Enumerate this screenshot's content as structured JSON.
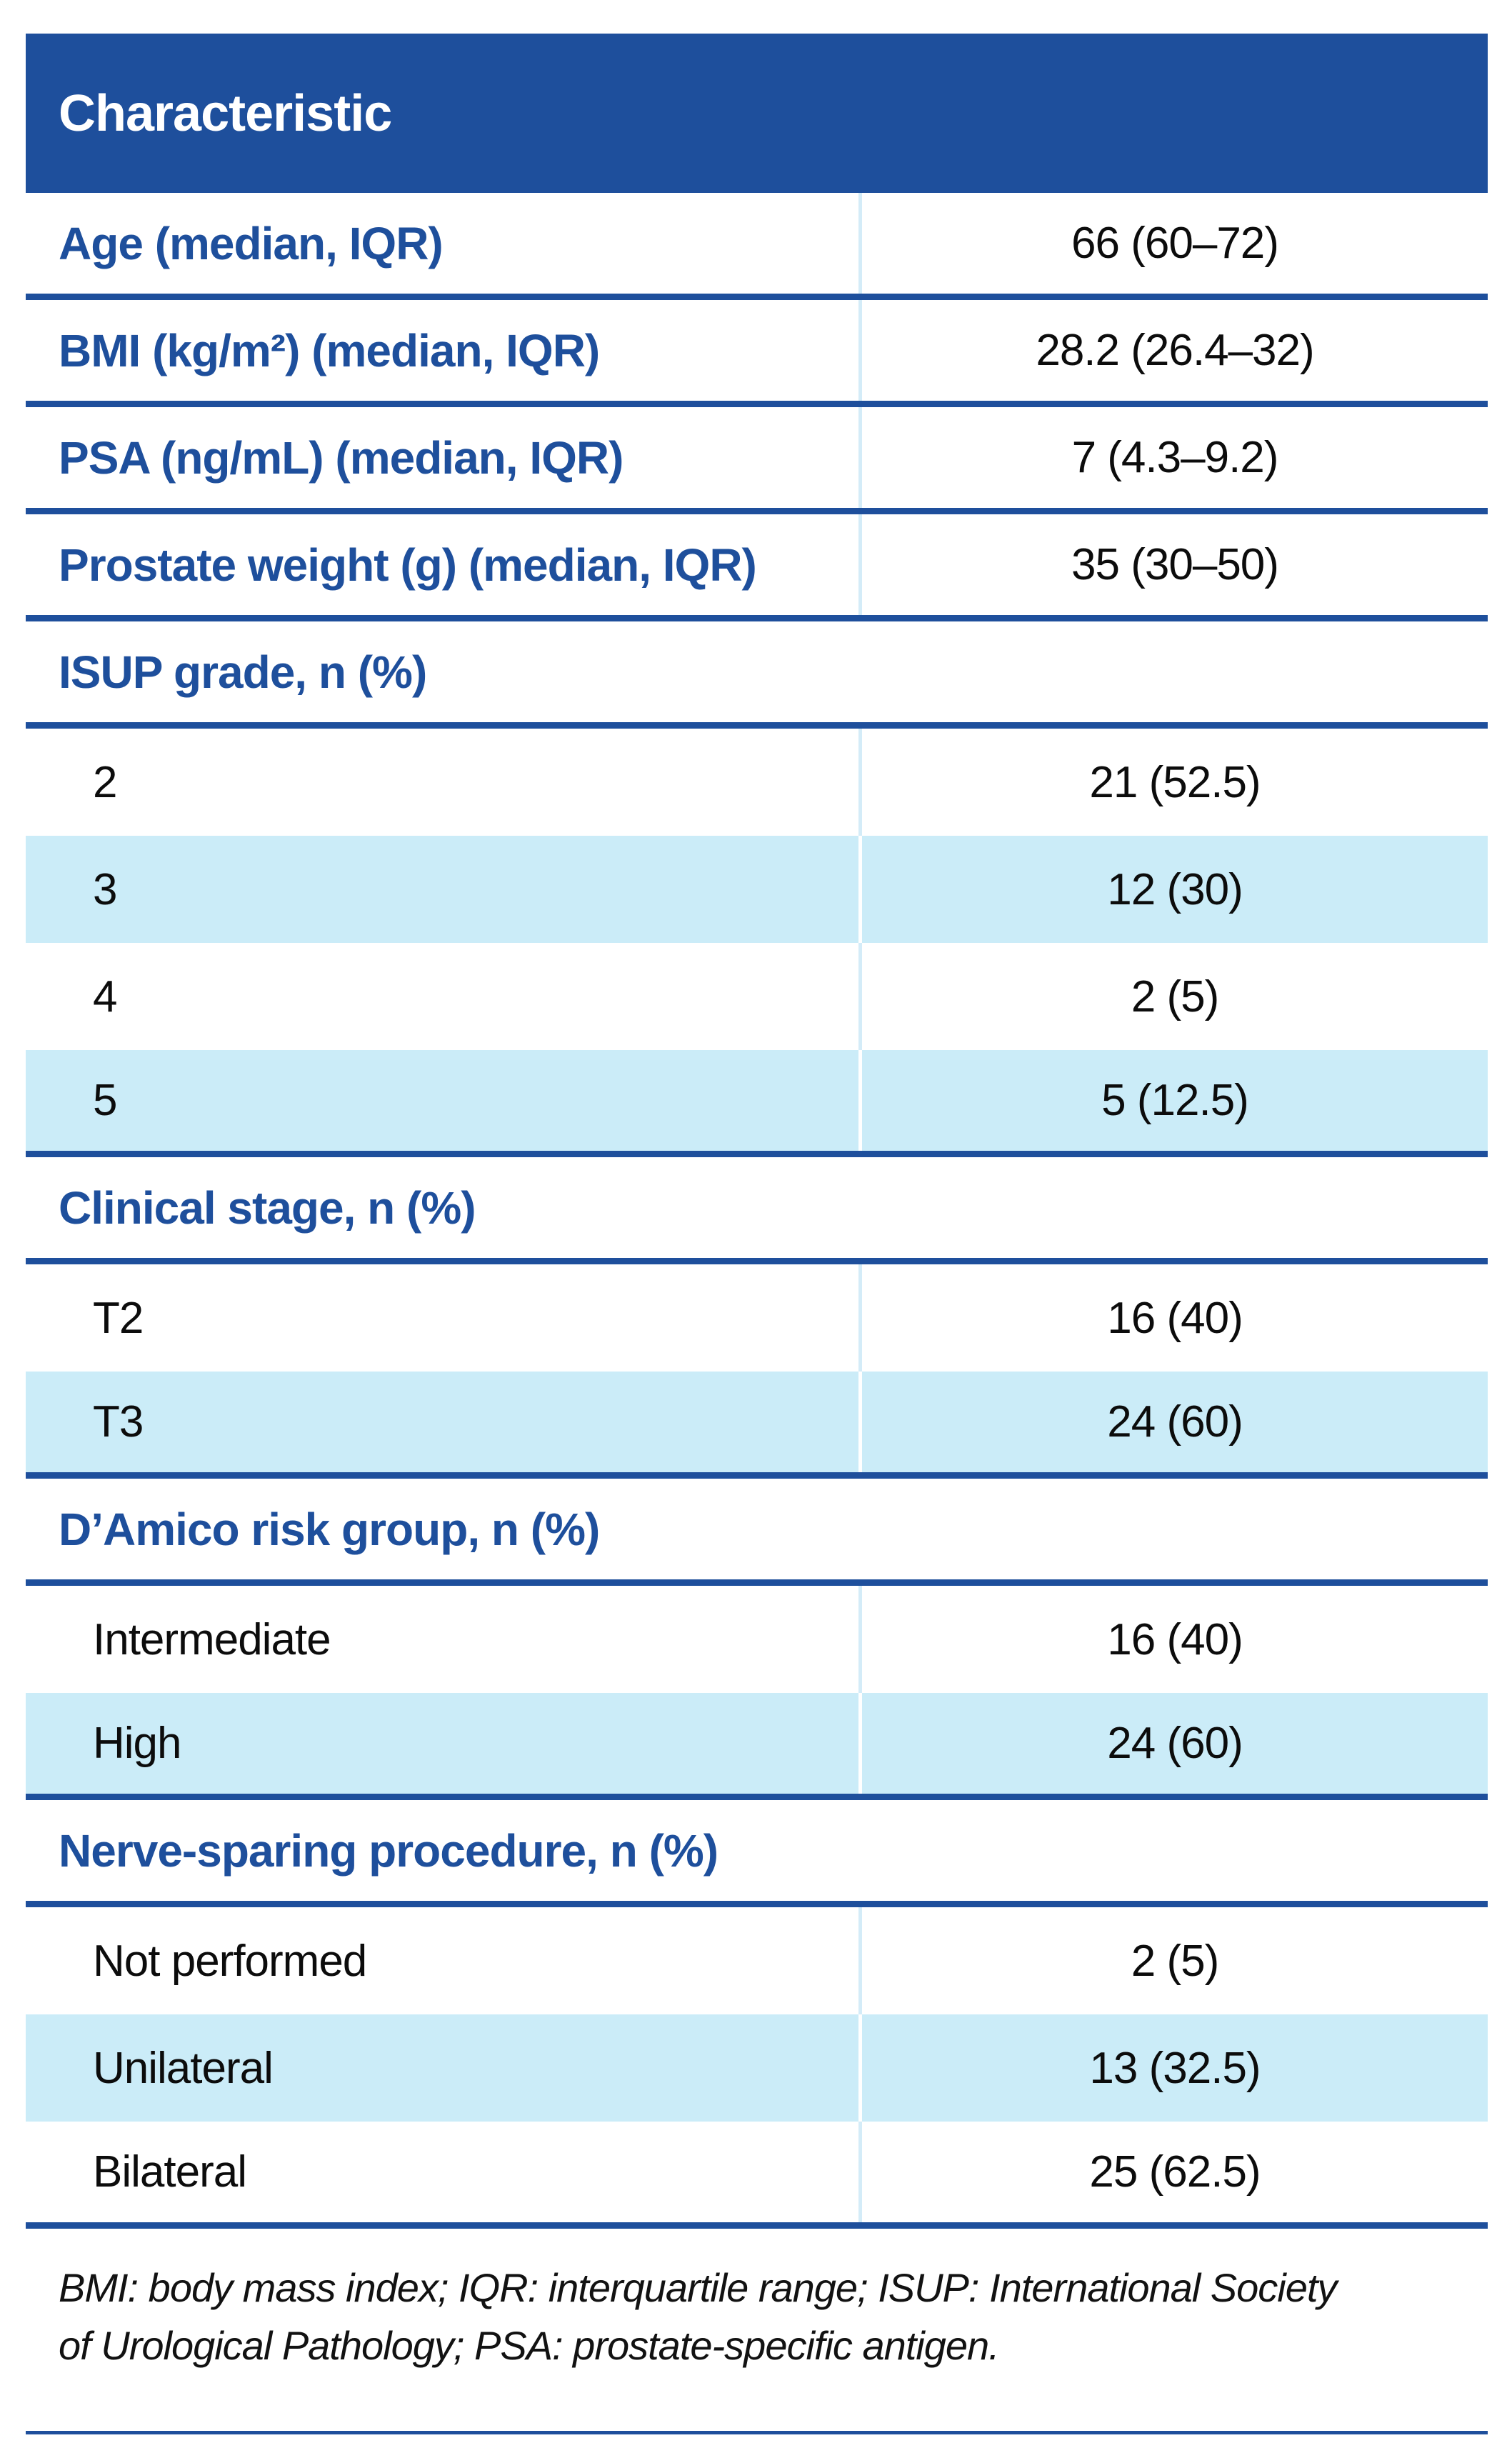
{
  "colors": {
    "accent_blue": "#1e4f9c",
    "row_tint": "#cbecf8",
    "divider_tint": "#d4ecf8",
    "header_text": "#ffffff",
    "value_text": "#0c0c0c"
  },
  "table": {
    "header": {
      "characteristic_label": "Characteristic"
    },
    "rows": [
      {
        "type": "stat",
        "label": "Age (median, IQR)",
        "value": "66 (60–72)",
        "tinted": false,
        "divider": true
      },
      {
        "type": "stat",
        "label": "BMI (kg/m²) (median, IQR)",
        "value": "28.2 (26.4–32)",
        "tinted": false,
        "divider": true
      },
      {
        "type": "stat",
        "label": "PSA (ng/mL) (median, IQR)",
        "value": "7 (4.3–9.2)",
        "tinted": false,
        "divider": true
      },
      {
        "type": "stat",
        "label": "Prostate weight (g) (median, IQR)",
        "value": "35 (30–50)",
        "tinted": false,
        "divider": true
      },
      {
        "type": "section",
        "label": "ISUP grade, n (%)",
        "tinted": false,
        "divider": true
      },
      {
        "type": "sub",
        "label": "2",
        "value": "21 (52.5)",
        "tinted": false,
        "divider": false
      },
      {
        "type": "sub",
        "label": "3",
        "value": "12 (30)",
        "tinted": true,
        "divider": false
      },
      {
        "type": "sub",
        "label": "4",
        "value": "2 (5)",
        "tinted": false,
        "divider": false
      },
      {
        "type": "sub",
        "label": "5",
        "value": "5 (12.5)",
        "tinted": true,
        "divider": true
      },
      {
        "type": "section",
        "label": "Clinical stage, n (%)",
        "tinted": false,
        "divider": true
      },
      {
        "type": "sub",
        "label": "T2",
        "value": "16 (40)",
        "tinted": false,
        "divider": false
      },
      {
        "type": "sub",
        "label": "T3",
        "value": "24 (60)",
        "tinted": true,
        "divider": true
      },
      {
        "type": "section",
        "label": "D’Amico risk group, n (%)",
        "tinted": false,
        "divider": true
      },
      {
        "type": "sub",
        "label": "Intermediate",
        "value": "16 (40)",
        "tinted": false,
        "divider": false
      },
      {
        "type": "sub",
        "label": "High",
        "value": "24 (60)",
        "tinted": true,
        "divider": true
      },
      {
        "type": "section",
        "label": "Nerve-sparing procedure, n (%)",
        "tinted": false,
        "divider": true
      },
      {
        "type": "sub",
        "label": "Not performed",
        "value": "2 (5)",
        "tinted": false,
        "divider": false
      },
      {
        "type": "sub",
        "label": "Unilateral",
        "value": "13 (32.5)",
        "tinted": true,
        "divider": false
      },
      {
        "type": "sub",
        "label": "Bilateral",
        "value": "25 (62.5)",
        "tinted": false,
        "divider": true
      }
    ],
    "footnote": "BMI: body mass index; IQR: interquartile range; ISUP: International Society of Urological Pathology; PSA: prostate-specific antigen."
  }
}
